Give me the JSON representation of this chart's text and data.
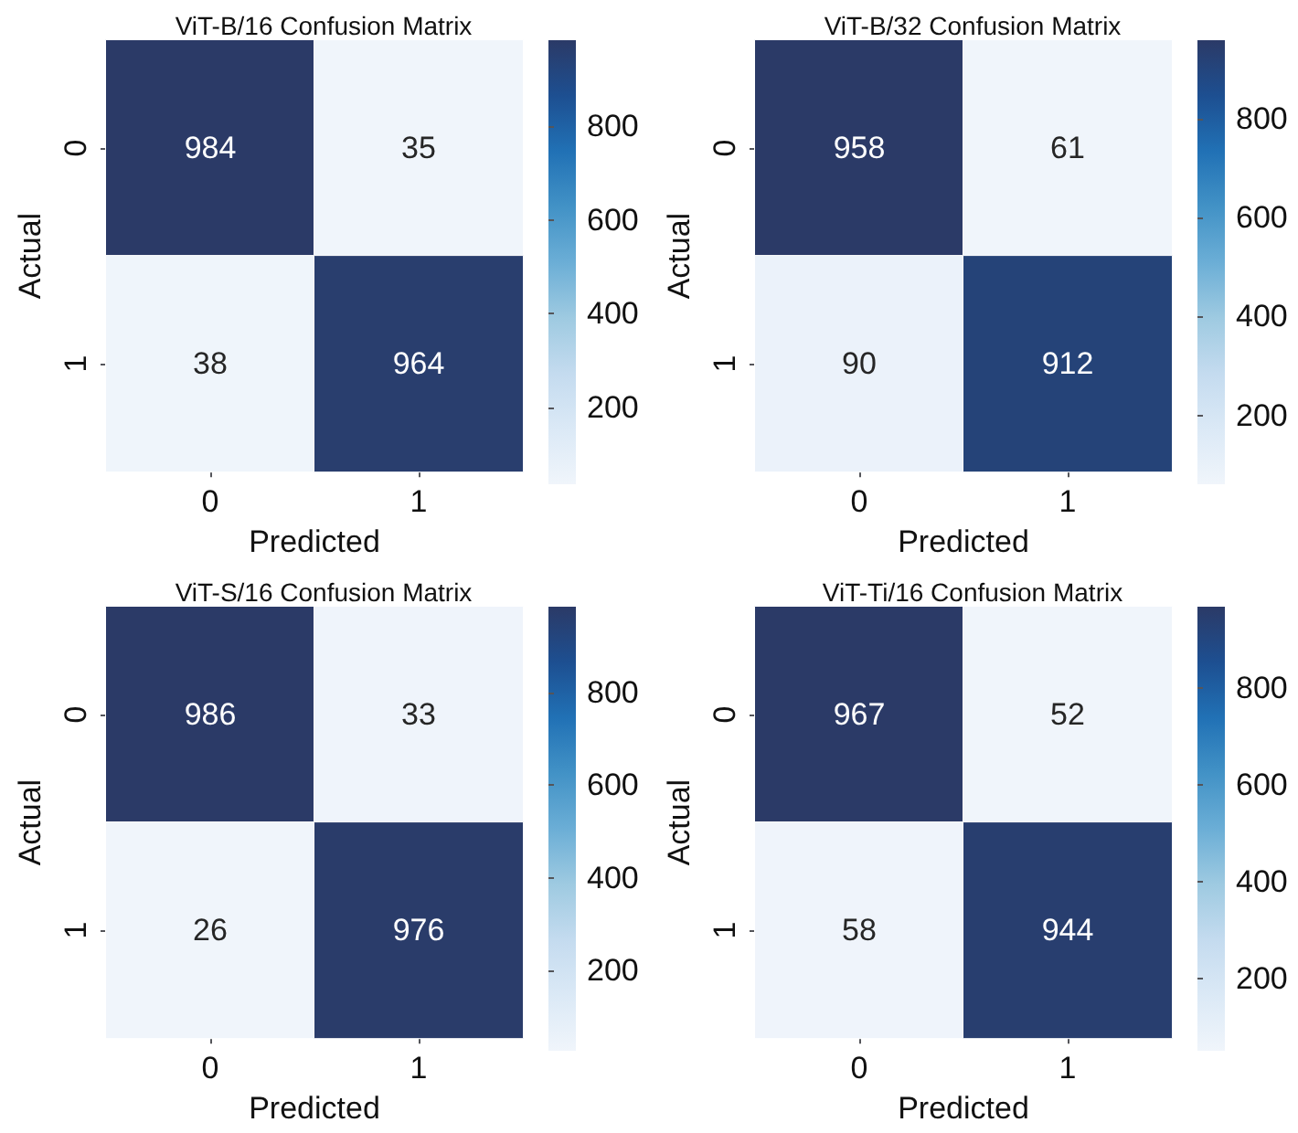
{
  "chart_data": [
    {
      "type": "heatmap",
      "title": "ViT-B/16 Confusion Matrix",
      "xlabel": "Predicted",
      "ylabel": "Actual",
      "categories": [
        "0",
        "1"
      ],
      "y_categories": [
        "0",
        "1"
      ],
      "cells": [
        [
          984,
          35
        ],
        [
          38,
          964
        ]
      ],
      "clim": [
        35,
        984
      ],
      "cticks": [
        200,
        400,
        600,
        800
      ],
      "data_labels": true
    },
    {
      "type": "heatmap",
      "title": "ViT-B/32 Confusion Matrix",
      "xlabel": "Predicted",
      "ylabel": "Actual",
      "categories": [
        "0",
        "1"
      ],
      "y_categories": [
        "0",
        "1"
      ],
      "cells": [
        [
          958,
          61
        ],
        [
          90,
          912
        ]
      ],
      "clim": [
        61,
        958
      ],
      "cticks": [
        200,
        400,
        600,
        800
      ],
      "data_labels": true
    },
    {
      "type": "heatmap",
      "title": "ViT-S/16 Confusion Matrix",
      "xlabel": "Predicted",
      "ylabel": "Actual",
      "categories": [
        "0",
        "1"
      ],
      "y_categories": [
        "0",
        "1"
      ],
      "cells": [
        [
          986,
          33
        ],
        [
          26,
          976
        ]
      ],
      "clim": [
        26,
        986
      ],
      "cticks": [
        200,
        400,
        600,
        800
      ],
      "data_labels": true
    },
    {
      "type": "heatmap",
      "title": "ViT-Ti/16 Confusion Matrix",
      "xlabel": "Predicted",
      "ylabel": "Actual",
      "categories": [
        "0",
        "1"
      ],
      "y_categories": [
        "0",
        "1"
      ],
      "cells": [
        [
          967,
          52
        ],
        [
          58,
          944
        ]
      ],
      "clim": [
        52,
        967
      ],
      "cticks": [
        200,
        400,
        600,
        800
      ],
      "data_labels": true
    }
  ]
}
